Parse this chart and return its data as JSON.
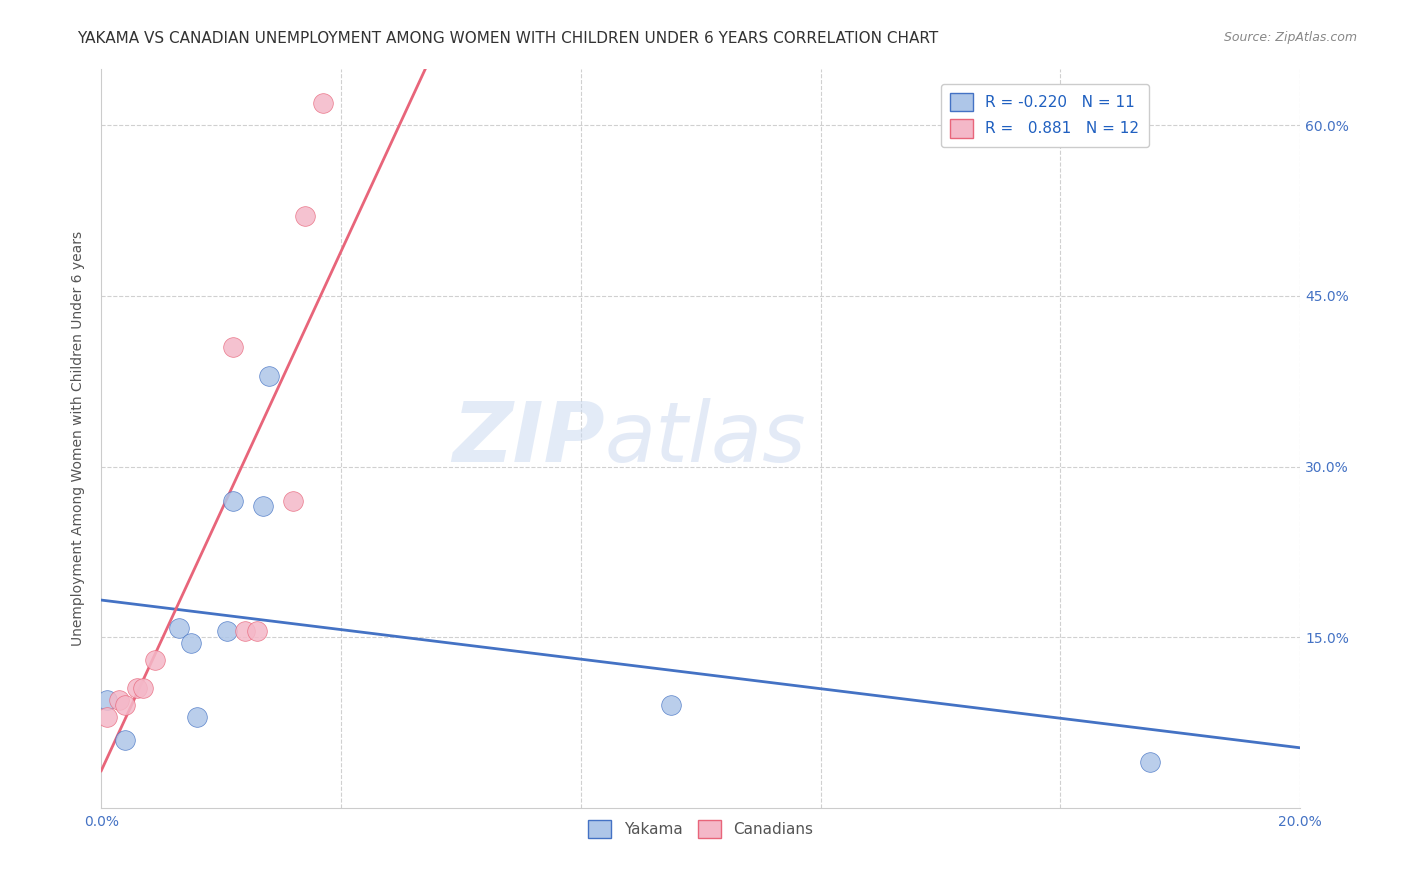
{
  "title": "YAKAMA VS CANADIAN UNEMPLOYMENT AMONG WOMEN WITH CHILDREN UNDER 6 YEARS CORRELATION CHART",
  "source": "Source: ZipAtlas.com",
  "ylabel": "Unemployment Among Women with Children Under 6 years",
  "xlim": [
    0.0,
    0.2
  ],
  "ylim": [
    0.0,
    0.65
  ],
  "xticks": [
    0.0,
    0.04,
    0.08,
    0.12,
    0.16,
    0.2
  ],
  "xticklabels": [
    "0.0%",
    "",
    "",
    "",
    "",
    "20.0%"
  ],
  "yticks": [
    0.0,
    0.15,
    0.3,
    0.45,
    0.6
  ],
  "yticklabels_right": [
    "",
    "15.0%",
    "30.0%",
    "45.0%",
    "60.0%"
  ],
  "yakama_x": [
    0.001,
    0.004,
    0.013,
    0.015,
    0.016,
    0.021,
    0.022,
    0.027,
    0.028,
    0.095,
    0.175
  ],
  "yakama_y": [
    0.095,
    0.06,
    0.158,
    0.145,
    0.08,
    0.155,
    0.27,
    0.265,
    0.38,
    0.09,
    0.04
  ],
  "canadians_x": [
    0.001,
    0.003,
    0.004,
    0.006,
    0.007,
    0.009,
    0.022,
    0.024,
    0.026,
    0.032,
    0.034,
    0.037
  ],
  "canadians_y": [
    0.08,
    0.095,
    0.09,
    0.105,
    0.105,
    0.13,
    0.405,
    0.155,
    0.155,
    0.27,
    0.52,
    0.62
  ],
  "yakama_r": "-0.220",
  "yakama_n": "11",
  "canadians_r": "0.881",
  "canadians_n": "12",
  "yakama_color": "#aec6e8",
  "yakama_line_color": "#4472c4",
  "canadians_color": "#f4b8c8",
  "canadians_line_color": "#e8657a",
  "watermark_zip": "ZIP",
  "watermark_atlas": "atlas",
  "background_color": "#ffffff",
  "grid_color": "#d0d0d0",
  "title_fontsize": 11,
  "axis_label_fontsize": 10,
  "tick_fontsize": 10,
  "legend_fontsize": 11,
  "marker_size": 200,
  "legend_r_color": "#2060c0",
  "right_tick_color": "#4472c4"
}
